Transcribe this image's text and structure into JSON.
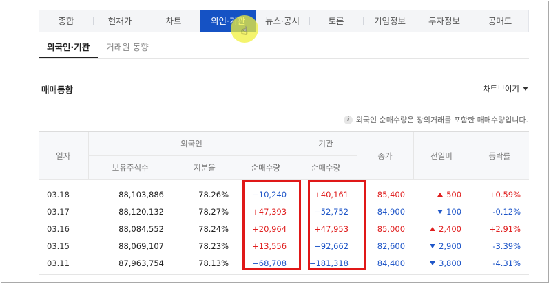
{
  "tabs": [
    {
      "label": "종합",
      "w": 78
    },
    {
      "label": "현재가",
      "w": 78
    },
    {
      "label": "차트",
      "w": 78
    },
    {
      "label": "외인·기관",
      "w": 80,
      "active": true
    },
    {
      "label": "뉴스·공시",
      "w": 78
    },
    {
      "label": "토론",
      "w": 78
    },
    {
      "label": "기업정보",
      "w": 78
    },
    {
      "label": "투자정보",
      "w": 80
    },
    {
      "label": "공매도",
      "w": 82
    }
  ],
  "subtabs": {
    "foreign_inst": "외국인·기관",
    "broker": "거래원 동향"
  },
  "section": {
    "title": "매매동향",
    "chart_toggle": "차트보이기"
  },
  "notice": {
    "icon": "info-icon",
    "text": "외국인 순매수량은 장외거래를 포함한 매매수량입니다."
  },
  "table": {
    "headers": {
      "date": "일자",
      "foreign": "외국인",
      "institution": "기관",
      "holdings": "보유주식수",
      "ratio": "지분율",
      "foreign_net": "순매수량",
      "inst_net": "순매수량",
      "close": "종가",
      "change": "전일비",
      "rate": "등락률"
    },
    "rows": [
      {
        "date": "03.18",
        "holdings": "88,103,886",
        "ratio": "78.26%",
        "foreign_net": "−10,240",
        "inst_net": "+40,161",
        "close": "85,400",
        "change": "500",
        "rate": "+0.59%",
        "dir": "up",
        "fdir": "down",
        "idir": "up"
      },
      {
        "date": "03.17",
        "holdings": "88,120,132",
        "ratio": "78.27%",
        "foreign_net": "+47,393",
        "inst_net": "−52,752",
        "close": "84,900",
        "change": "100",
        "rate": "-0.12%",
        "dir": "down",
        "fdir": "up",
        "idir": "down"
      },
      {
        "date": "03.16",
        "holdings": "88,084,552",
        "ratio": "78.24%",
        "foreign_net": "+20,964",
        "inst_net": "+47,953",
        "close": "85,000",
        "change": "2,400",
        "rate": "+2.91%",
        "dir": "up",
        "fdir": "up",
        "idir": "up"
      },
      {
        "date": "03.15",
        "holdings": "88,069,107",
        "ratio": "78.23%",
        "foreign_net": "+13,556",
        "inst_net": "−92,662",
        "close": "82,600",
        "change": "2,900",
        "rate": "-3.39%",
        "dir": "down",
        "fdir": "up",
        "idir": "down"
      },
      {
        "date": "03.11",
        "holdings": "87,963,754",
        "ratio": "78.13%",
        "foreign_net": "−68,708",
        "inst_net": "−181,318",
        "close": "84,400",
        "change": "3,800",
        "rate": "-4.31%",
        "dir": "down",
        "fdir": "down",
        "idir": "down"
      }
    ]
  },
  "colors": {
    "accent": "#1552c4",
    "up": "#e02020",
    "down": "#1f56c8",
    "highlight": "#e01818"
  }
}
